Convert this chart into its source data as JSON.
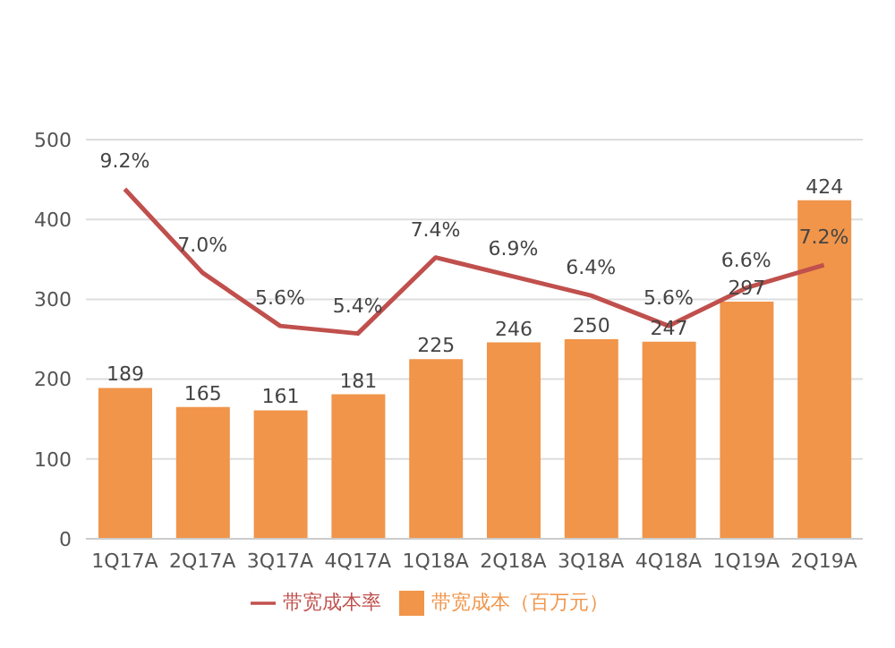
{
  "chart_data": {
    "type": "bar",
    "categories": [
      "1Q17A",
      "2Q17A",
      "3Q17A",
      "4Q17A",
      "1Q18A",
      "2Q18A",
      "3Q18A",
      "4Q18A",
      "1Q19A",
      "2Q19A"
    ],
    "series": [
      {
        "name": "带宽成本（百万元）",
        "color": "#f0954a",
        "values": [
          189,
          165,
          161,
          181,
          225,
          246,
          250,
          247,
          297,
          424
        ],
        "value_labels": [
          "189",
          "165",
          "161",
          "181",
          "225",
          "246",
          "250",
          "247",
          "297",
          "424"
        ]
      },
      {
        "name": "带宽成本率",
        "type": "line",
        "axis": "y2",
        "color": "#c0504d",
        "values": [
          9.2,
          7.0,
          5.6,
          5.4,
          7.4,
          6.9,
          6.4,
          5.6,
          6.6,
          7.2
        ],
        "value_labels": [
          "9.2%",
          "7.0%",
          "5.6%",
          "5.4%",
          "7.4%",
          "6.9%",
          "6.4%",
          "5.6%",
          "6.6%",
          "7.2%"
        ]
      }
    ],
    "ylim": [
      0,
      500
    ],
    "yticks": [
      0,
      100,
      200,
      300,
      400,
      500
    ],
    "y2lim": [
      0,
      10.5
    ],
    "tick_labels": "xy",
    "grid": "y",
    "legend": "bottom",
    "marker": "none"
  }
}
